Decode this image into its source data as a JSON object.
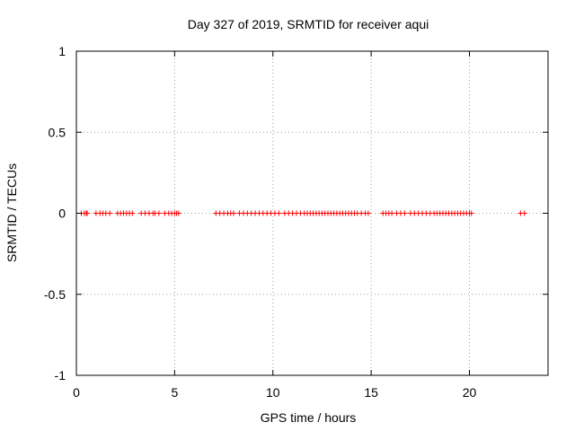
{
  "chart_data": {
    "type": "scatter",
    "title": "Day 327 of 2019, SRMTID for receiver aqui",
    "xlabel": "GPS time / hours",
    "ylabel": "SRMTID / TECUs",
    "xlim": [
      0,
      24
    ],
    "ylim": [
      -1,
      1
    ],
    "xticks": [
      0,
      5,
      10,
      15,
      20
    ],
    "yticks": [
      -1,
      -0.5,
      0,
      0.5,
      1
    ],
    "xtick_labels": [
      "0",
      "5",
      "10",
      "15",
      "20"
    ],
    "ytick_labels": [
      "-1",
      "-0.5",
      "0",
      "0.5",
      "1"
    ],
    "grid": true,
    "marker": "plus",
    "series": [
      {
        "color": "#ff0000",
        "x": [
          0.25,
          0.4,
          0.5,
          0.55,
          1.0,
          1.2,
          1.35,
          1.5,
          1.7,
          2.1,
          2.25,
          2.4,
          2.55,
          2.7,
          2.85,
          3.3,
          3.5,
          3.7,
          3.9,
          4.0,
          4.2,
          4.5,
          4.7,
          4.85,
          5.0,
          5.1,
          5.2,
          7.1,
          7.3,
          7.5,
          7.7,
          7.85,
          8.0,
          8.3,
          8.5,
          8.7,
          8.9,
          9.1,
          9.3,
          9.5,
          9.7,
          9.9,
          10.1,
          10.3,
          10.6,
          10.8,
          11.0,
          11.2,
          11.4,
          11.6,
          11.75,
          11.9,
          12.05,
          12.2,
          12.35,
          12.5,
          12.65,
          12.8,
          12.95,
          13.1,
          13.25,
          13.4,
          13.55,
          13.7,
          13.85,
          14.0,
          14.15,
          14.3,
          14.5,
          14.7,
          14.85,
          15.6,
          15.75,
          15.9,
          16.05,
          16.3,
          16.5,
          16.7,
          17.0,
          17.2,
          17.4,
          17.6,
          17.8,
          18.0,
          18.2,
          18.35,
          18.5,
          18.65,
          18.8,
          18.95,
          19.1,
          19.25,
          19.4,
          19.55,
          19.7,
          19.85,
          20.0,
          20.1,
          22.6,
          22.8
        ],
        "y": [
          0,
          0,
          0,
          0,
          0,
          0,
          0,
          0,
          0,
          0,
          0,
          0,
          0,
          0,
          0,
          0,
          0,
          0,
          0,
          0,
          0,
          0,
          0,
          0,
          0,
          0,
          0,
          0,
          0,
          0,
          0,
          0,
          0,
          0,
          0,
          0,
          0,
          0,
          0,
          0,
          0,
          0,
          0,
          0,
          0,
          0,
          0,
          0,
          0,
          0,
          0,
          0,
          0,
          0,
          0,
          0,
          0,
          0,
          0,
          0,
          0,
          0,
          0,
          0,
          0,
          0,
          0,
          0,
          0,
          0,
          0,
          0,
          0,
          0,
          0,
          0,
          0,
          0,
          0,
          0,
          0,
          0,
          0,
          0,
          0,
          0,
          0,
          0,
          0,
          0,
          0,
          0,
          0,
          0,
          0,
          0,
          0,
          0,
          0,
          0
        ]
      }
    ]
  }
}
